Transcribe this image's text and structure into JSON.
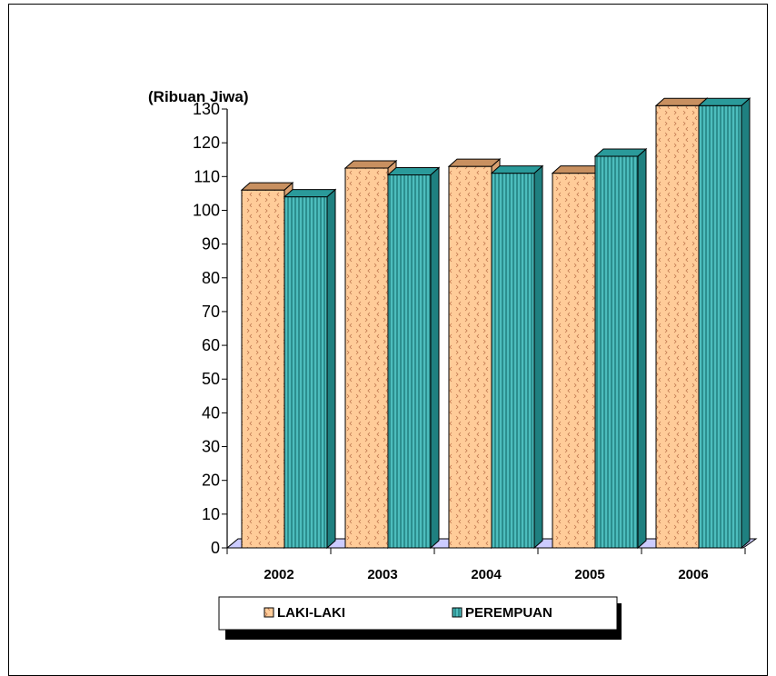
{
  "chart_data": {
    "type": "bar",
    "unit_label": "(Ribuan Jiwa)",
    "categories": [
      "2002",
      "2003",
      "2004",
      "2005",
      "2006"
    ],
    "series": [
      {
        "name": "LAKI-LAKI",
        "values": [
          106,
          112.5,
          113,
          111,
          131
        ]
      },
      {
        "name": "PEREMPUAN",
        "values": [
          104,
          110.5,
          111,
          116,
          131
        ]
      }
    ],
    "ylim": [
      0,
      130
    ],
    "yticks": [
      "0",
      "10",
      "20",
      "30",
      "40",
      "50",
      "60",
      "70",
      "80",
      "90",
      "100",
      "110",
      "120",
      "130"
    ],
    "grid": false,
    "legend_position": "bottom",
    "colors": {
      "laki_front": "#ffcc99",
      "laki_side": "#d9a070",
      "laki_top": "#c89060",
      "perempuan_front": "#4dbdbd",
      "perempuan_side": "#1f8080",
      "perempuan_top": "#2a9a9a",
      "floor": "#ccccff"
    }
  }
}
